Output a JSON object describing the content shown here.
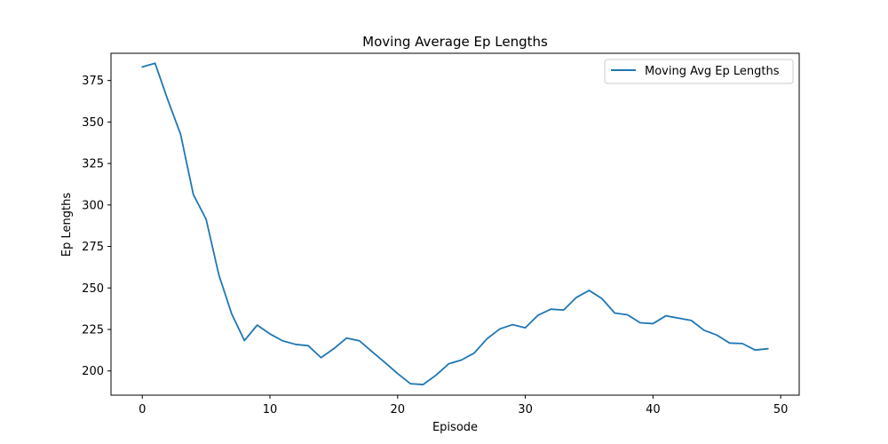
{
  "chart_data": {
    "type": "line",
    "title": "Moving Average Ep Lengths",
    "xlabel": "Episode",
    "ylabel": "Ep Lengths",
    "xlim": [
      -2.45,
      51.45
    ],
    "ylim": [
      185.4,
      391.4
    ],
    "xticks": [
      0,
      10,
      20,
      30,
      40,
      50
    ],
    "yticks": [
      200,
      225,
      250,
      275,
      300,
      325,
      350,
      375
    ],
    "grid": false,
    "legend_position": "top-right",
    "colors": {
      "series": "#1f77b4",
      "axes": "#000000"
    },
    "series": [
      {
        "name": "Moving Avg Ep Lengths",
        "x": [
          0,
          1,
          2,
          3,
          4,
          5,
          6,
          7,
          8,
          9,
          10,
          11,
          12,
          13,
          14,
          15,
          16,
          17,
          18,
          19,
          20,
          21,
          22,
          23,
          24,
          25,
          26,
          27,
          28,
          29,
          30,
          31,
          32,
          33,
          34,
          35,
          36,
          37,
          38,
          39,
          40,
          41,
          42,
          43,
          44,
          45,
          46,
          47,
          48,
          49
        ],
        "y": [
          383.2,
          385.4,
          363.3,
          342.6,
          306.3,
          291.4,
          257.8,
          234.4,
          218.3,
          227.6,
          222.3,
          218.1,
          216.0,
          215.2,
          208.0,
          213.4,
          219.8,
          218.2,
          211.6,
          205.1,
          198.4,
          192.3,
          191.8,
          197.4,
          204.3,
          206.6,
          210.8,
          219.4,
          225.3,
          227.9,
          226.0,
          233.6,
          237.2,
          236.7,
          244.3,
          248.5,
          243.6,
          234.9,
          233.8,
          229.0,
          228.5,
          233.2,
          231.8,
          230.4,
          224.5,
          221.6,
          216.8,
          216.5,
          212.6,
          213.4
        ]
      }
    ]
  }
}
